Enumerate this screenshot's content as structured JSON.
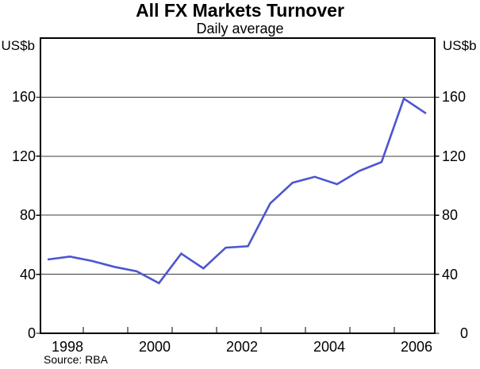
{
  "chart_data": {
    "type": "line",
    "title": "All FX Markets Turnover",
    "subtitle": "Daily average",
    "y_unit_left": "US$b",
    "y_unit_right": "US$b",
    "source": "Source: RBA",
    "series": [
      {
        "name": "All FX markets turnover, daily average (US$b)",
        "x": [
          1997.5,
          1998.0,
          1998.5,
          1999.0,
          1999.5,
          2000.0,
          2000.5,
          2001.0,
          2001.5,
          2002.0,
          2002.5,
          2003.0,
          2003.5,
          2004.0,
          2004.5,
          2005.0,
          2005.5,
          2006.0
        ],
        "values": [
          50,
          52,
          49,
          45,
          42,
          34,
          54,
          44,
          58,
          59,
          88,
          102,
          106,
          101,
          110,
          116,
          159,
          149
        ]
      }
    ],
    "ylim": [
      0,
      200
    ],
    "y_ticks": [
      0,
      40,
      80,
      120,
      160
    ],
    "x_tick_labels": [
      "1998",
      "2000",
      "2002",
      "2004",
      "2006"
    ],
    "x_minor_ticks_count": 8,
    "grid": "horizontal",
    "legend": "none",
    "line_color": "#4d55d0",
    "grid_color": "#3c3c3c",
    "axis_color": "#000000",
    "background_color": "#ffffff"
  }
}
